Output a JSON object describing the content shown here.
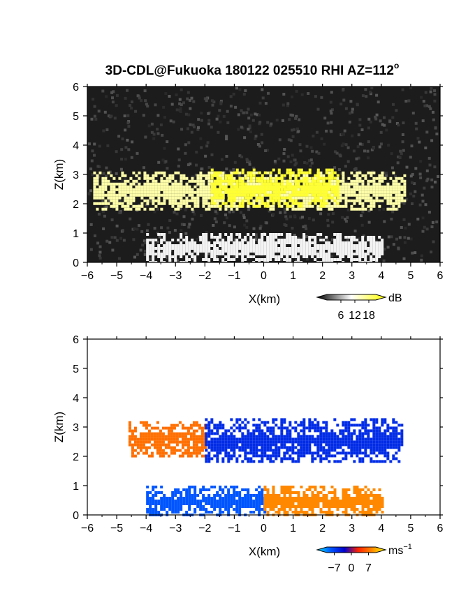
{
  "title": "3D-CDL@Fukuoka 180122 025510 RHI AZ=112",
  "title_degree": "o",
  "chart_data": [
    {
      "type": "heatmap",
      "variable": "intensity",
      "xlabel": "X(km)",
      "ylabel": "Z(km)",
      "xlim": [
        -6,
        6
      ],
      "ylim": [
        0,
        6
      ],
      "x_ticks": [
        "−6",
        "−5",
        "−4",
        "−3",
        "−2",
        "−1",
        "0",
        "1",
        "2",
        "3",
        "4",
        "5",
        "6"
      ],
      "y_ticks": [
        "0",
        "1",
        "2",
        "3",
        "4",
        "5",
        "6"
      ],
      "colorbar": {
        "unit": "dB",
        "ticks": [
          "6",
          "12",
          "18"
        ],
        "range": [
          0,
          21
        ],
        "colors": [
          "#000000",
          "#ffffff",
          "#ffff00"
        ]
      },
      "features": [
        {
          "what": "cloud layer",
          "x_range": [
            -5.8,
            4.8
          ],
          "z_range": [
            1.8,
            3.1
          ],
          "value_db": 14
        },
        {
          "what": "saturated core",
          "x_range": [
            -1.8,
            2.5
          ],
          "z_range": [
            1.9,
            3.2
          ],
          "value_db": 19
        },
        {
          "what": "near-field fan",
          "x_range": [
            -4.0,
            4.0
          ],
          "z_range": [
            0.0,
            1.0
          ],
          "value_db": 10
        }
      ]
    },
    {
      "type": "heatmap",
      "variable": "radial velocity",
      "xlabel": "X(km)",
      "ylabel": "Z(km)",
      "xlim": [
        -6,
        6
      ],
      "ylim": [
        0,
        6
      ],
      "x_ticks": [
        "−6",
        "−5",
        "−4",
        "−3",
        "−2",
        "−1",
        "0",
        "1",
        "2",
        "3",
        "4",
        "5",
        "6"
      ],
      "y_ticks": [
        "0",
        "1",
        "2",
        "3",
        "4",
        "5",
        "6"
      ],
      "colorbar": {
        "unit": "ms",
        "unit_sup": "−1",
        "ticks": [
          "−7",
          "0",
          "7"
        ],
        "range": [
          -10,
          10
        ],
        "colors": [
          "#00e5ff",
          "#0055ff",
          "#0000cc",
          "#ff2200",
          "#ff8800",
          "#ffff00"
        ]
      },
      "features": [
        {
          "what": "cloud layer west part",
          "x_range": [
            -4.6,
            -2.0
          ],
          "z_range": [
            2.0,
            3.2
          ],
          "velocity": 5
        },
        {
          "what": "cloud layer east part",
          "x_range": [
            -2.0,
            4.7
          ],
          "z_range": [
            1.8,
            3.3
          ],
          "velocity": -4
        },
        {
          "what": "low layer west",
          "x_range": [
            -4.0,
            0.0
          ],
          "z_range": [
            0.0,
            1.0
          ],
          "velocity": -6
        },
        {
          "what": "low layer east",
          "x_range": [
            0.0,
            4.0
          ],
          "z_range": [
            0.0,
            1.0
          ],
          "velocity": 6
        }
      ]
    }
  ]
}
